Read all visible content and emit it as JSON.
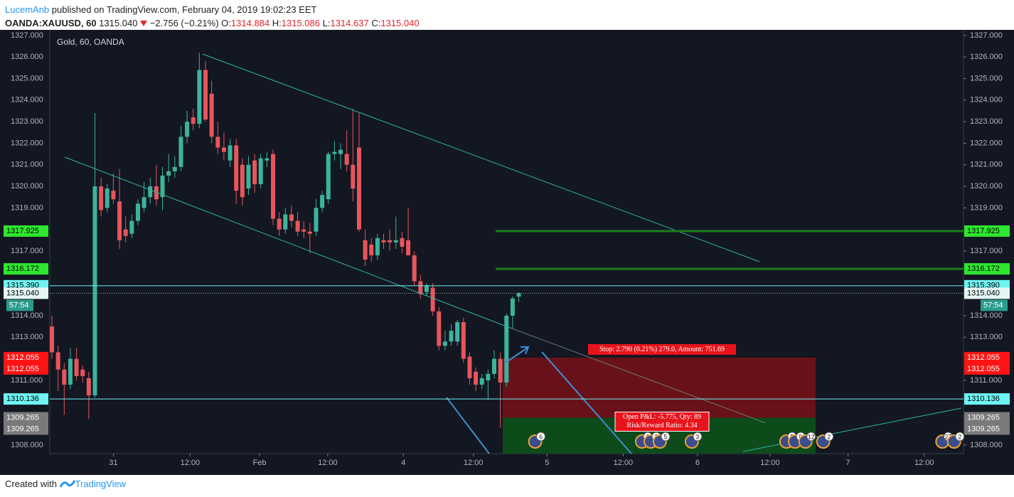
{
  "header": {
    "author": "LucemAnb",
    "published": "published on TradingView.com, February 04, 2019 19:02:23 EET",
    "symbol": "OANDA:XAUUSD, 60",
    "last": "1315.040",
    "change": "−2.756 (−0.21%)",
    "ohlc": [
      {
        "key": "O:",
        "value": "1314.884"
      },
      {
        "key": "H:",
        "value": "1315.086"
      },
      {
        "key": "L:",
        "value": "1314.637"
      },
      {
        "key": "C:",
        "value": "1315.040"
      }
    ]
  },
  "chart_data": {
    "type": "candlestick",
    "title": "Gold, 60, OANDA",
    "x": [
      0,
      1,
      2,
      3,
      4,
      5,
      6,
      7,
      8,
      9,
      10,
      11,
      12,
      13,
      14,
      15,
      16,
      17,
      18,
      19,
      20,
      21,
      22,
      23,
      24,
      25,
      26,
      27,
      28,
      29,
      30,
      31,
      32,
      33,
      34,
      35,
      36,
      37,
      38,
      39,
      40,
      41,
      42,
      43,
      44,
      45,
      46,
      47,
      48,
      49,
      50,
      51,
      52,
      53,
      54,
      55,
      56,
      57,
      58,
      59,
      60,
      61,
      62,
      63,
      64,
      65,
      66,
      67,
      68,
      69,
      70,
      71,
      72,
      73,
      74,
      75,
      76
    ],
    "open": [
      1313.5,
      1312.3,
      1311.5,
      1310.8,
      1312.0,
      1311.5,
      1311.1,
      1310.3,
      1320.0,
      1319.0,
      1319.8,
      1319.3,
      1318.0,
      1317.8,
      1318.4,
      1319.0,
      1319.5,
      1320.0,
      1319.5,
      1320.5,
      1320.7,
      1320.9,
      1322.3,
      1323.2,
      1322.9,
      1325.4,
      1324.3,
      1322.3,
      1321.8,
      1321.2,
      1321.9,
      1321.0,
      1319.9,
      1321.2,
      1320.1,
      1321.2,
      1321.5,
      1318.5,
      1318.0,
      1318.7,
      1318.4,
      1318.0,
      1317.9,
      1317.9,
      1319.0,
      1319.4,
      1321.5,
      1321.5,
      1321.5,
      1321.0,
      1321.8,
      1317.5,
      1317.3,
      1316.8,
      1317.5,
      1317.5,
      1317.4,
      1317.6,
      1317.5,
      1316.8,
      1315.6,
      1315.1,
      1315.3,
      1314.2,
      1312.6,
      1312.8,
      1312.8,
      1313.7,
      1312.1,
      1311.4,
      1310.8,
      1311.0,
      1311.3,
      1312.0,
      1310.9,
      1314.0,
      1314.884
    ],
    "high": [
      1314.0,
      1312.6,
      1311.8,
      1312.5,
      1312.5,
      1311.7,
      1311.4,
      1323.4,
      1320.4,
      1320.1,
      1320.6,
      1320.8,
      1318.6,
      1318.7,
      1319.4,
      1320.2,
      1320.4,
      1321.0,
      1320.9,
      1321.5,
      1321.4,
      1322.8,
      1323.5,
      1323.6,
      1326.2,
      1325.8,
      1324.9,
      1323.0,
      1322.5,
      1322.2,
      1322.2,
      1321.3,
      1321.4,
      1321.5,
      1321.5,
      1321.6,
      1321.7,
      1318.8,
      1319.0,
      1319.1,
      1318.8,
      1318.4,
      1318.3,
      1319.4,
      1319.8,
      1321.6,
      1322.1,
      1322.0,
      1322.6,
      1323.6,
      1323.4,
      1318.0,
      1317.6,
      1317.8,
      1317.8,
      1318.0,
      1318.6,
      1317.9,
      1319.0,
      1317.0,
      1315.9,
      1315.5,
      1315.5,
      1314.4,
      1313.3,
      1313.6,
      1313.8,
      1313.9,
      1312.3,
      1311.6,
      1311.3,
      1311.5,
      1312.4,
      1312.3,
      1314.1,
      1314.9,
      1315.086
    ],
    "low": [
      1312.0,
      1310.5,
      1309.4,
      1310.6,
      1311.0,
      1310.9,
      1309.2,
      1310.2,
      1318.6,
      1318.8,
      1319.2,
      1317.1,
      1317.4,
      1317.6,
      1318.2,
      1318.8,
      1319.2,
      1319.1,
      1318.9,
      1320.2,
      1320.4,
      1320.7,
      1322.0,
      1322.6,
      1322.7,
      1323.0,
      1322.0,
      1321.5,
      1321.2,
      1320.9,
      1319.2,
      1319.1,
      1319.6,
      1319.7,
      1319.9,
      1320.9,
      1318.2,
      1317.7,
      1317.8,
      1318.1,
      1317.7,
      1317.6,
      1316.9,
      1317.7,
      1318.8,
      1319.2,
      1321.2,
      1320.8,
      1320.7,
      1319.3,
      1317.9,
      1316.3,
      1316.5,
      1316.6,
      1317.1,
      1317.0,
      1317.1,
      1316.9,
      1316.8,
      1315.4,
      1314.8,
      1314.9,
      1314.0,
      1312.4,
      1312.4,
      1312.6,
      1312.6,
      1311.8,
      1310.8,
      1310.5,
      1310.6,
      1310.1,
      1311.1,
      1308.8,
      1310.7,
      1313.4,
      1314.637
    ],
    "close": [
      1312.3,
      1311.5,
      1310.8,
      1312.0,
      1311.2,
      1311.2,
      1310.3,
      1320.0,
      1318.9,
      1319.9,
      1319.4,
      1317.5,
      1317.7,
      1318.4,
      1319.2,
      1319.5,
      1320.0,
      1319.4,
      1320.5,
      1320.7,
      1320.9,
      1322.3,
      1323.0,
      1322.9,
      1325.4,
      1323.1,
      1322.3,
      1321.8,
      1321.6,
      1321.9,
      1319.8,
      1319.5,
      1321.0,
      1320.1,
      1321.3,
      1321.3,
      1318.5,
      1318.0,
      1318.7,
      1318.4,
      1317.9,
      1317.9,
      1317.8,
      1319.0,
      1319.6,
      1321.5,
      1321.6,
      1321.7,
      1321.0,
      1319.9,
      1318.0,
      1316.6,
      1316.8,
      1317.6,
      1317.4,
      1317.4,
      1317.5,
      1317.2,
      1316.8,
      1315.6,
      1315.0,
      1315.4,
      1314.2,
      1312.6,
      1312.8,
      1313.3,
      1313.7,
      1312.0,
      1311.1,
      1310.8,
      1311.1,
      1311.3,
      1312.0,
      1310.9,
      1314.0,
      1314.8,
      1315.04
    ],
    "up_color": "#3bb39d",
    "down_color": "#e8555c",
    "xlim": [
      -0.35,
      148.4
    ],
    "xticks": [
      {
        "value": 10,
        "label": "31"
      },
      {
        "value": 22.5,
        "label": "12:00"
      },
      {
        "value": 33.8,
        "label": "Feb"
      },
      {
        "value": 44.9,
        "label": "12:00"
      },
      {
        "value": 57.2,
        "label": "4"
      },
      {
        "value": 68.6,
        "label": "12:00"
      },
      {
        "value": 80.6,
        "label": "5"
      },
      {
        "value": 93.0,
        "label": "12:00"
      },
      {
        "value": 105.1,
        "label": "6"
      },
      {
        "value": 116.9,
        "label": "12:00"
      },
      {
        "value": 129.6,
        "label": "7"
      },
      {
        "value": 142,
        "label": "12:00"
      }
    ],
    "ylim": [
      1307.6,
      1327.26
    ],
    "yticks": [
      {
        "value": 1308,
        "label": "1308.000"
      },
      {
        "value": 1311,
        "label": "1311.000"
      },
      {
        "value": 1313,
        "label": "1313.000"
      },
      {
        "value": 1314,
        "label": "1314.000"
      },
      {
        "value": 1317,
        "label": "1317.000"
      },
      {
        "value": 1319,
        "label": "1319.000"
      },
      {
        "value": 1320,
        "label": "1320.000"
      },
      {
        "value": 1321,
        "label": "1321.000"
      },
      {
        "value": 1322,
        "label": "1322.000"
      },
      {
        "value": 1323,
        "label": "1323.000"
      },
      {
        "value": 1324,
        "label": "1324.000"
      },
      {
        "value": 1325,
        "label": "1325.000"
      },
      {
        "value": 1326,
        "label": "1326.000"
      },
      {
        "value": 1327,
        "label": "1327.000"
      }
    ],
    "price_levels": [
      {
        "value": 1317.925,
        "label": "1317.925",
        "color": "#2ee62e",
        "text_color": "#000000",
        "line": "segment",
        "line_color": "#1c7d1c"
      },
      {
        "value": 1316.172,
        "label": "1316.172",
        "color": "#2ee62e",
        "text_color": "#000000",
        "line": "segment",
        "line_color": "#1c7d1c"
      },
      {
        "value": 1315.39,
        "label": "1315.390",
        "color": "#6ff3f3",
        "text_color": "#000000",
        "line": "full",
        "line_color": "#6ff3f3"
      },
      {
        "value": 1315.04,
        "label": "1315.040",
        "color": "#e3f6f3",
        "text_color": "#000000",
        "line": "dotted",
        "line_color": "#8fb9b4"
      },
      {
        "value": 1312.055,
        "label": "1312.055",
        "color": "#ff1414",
        "text_color": "#ffffff",
        "line": "none"
      },
      {
        "value": 1312.055,
        "label": "1312.055",
        "color": "#ff1414",
        "text_color": "#ffffff",
        "line": "none"
      },
      {
        "value": 1310.136,
        "label": "1310.136",
        "color": "#6ff3f3",
        "text_color": "#000000",
        "line": "full",
        "line_color": "#6ff3f3"
      },
      {
        "value": 1309.265,
        "label": "1309.265",
        "color": "#7a7a7a",
        "text_color": "#ffffff",
        "line": "none"
      },
      {
        "value": 1309.265,
        "label": "1309.265",
        "color": "#7a7a7a",
        "text_color": "#ffffff",
        "line": "none"
      }
    ],
    "countdown": "57:54",
    "position": {
      "stop": "Stop: 2.790 (0.21%) 279.0, Amount: 751.69",
      "pnl": "Open P&L: -5.775, Qty: 89",
      "ratio": "Risk/Reward Ratio: 4.34"
    },
    "events": [
      {
        "x": 78.9,
        "label": "6"
      },
      {
        "x": 96.3,
        "label": "2"
      },
      {
        "x": 97.7,
        "label": "2"
      },
      {
        "x": 99.2,
        "label": "5"
      },
      {
        "x": 104.4,
        "label": "3"
      },
      {
        "x": 119.8,
        "label": "5"
      },
      {
        "x": 121.2,
        "label": "9"
      },
      {
        "x": 122.9,
        "label": "12"
      },
      {
        "x": 125.8,
        "label": "2"
      },
      {
        "x": 145.2,
        "label": "27"
      },
      {
        "x": 147.1,
        "label": "2"
      }
    ]
  },
  "footer": {
    "created": "Created with",
    "brand": "TradingView"
  }
}
